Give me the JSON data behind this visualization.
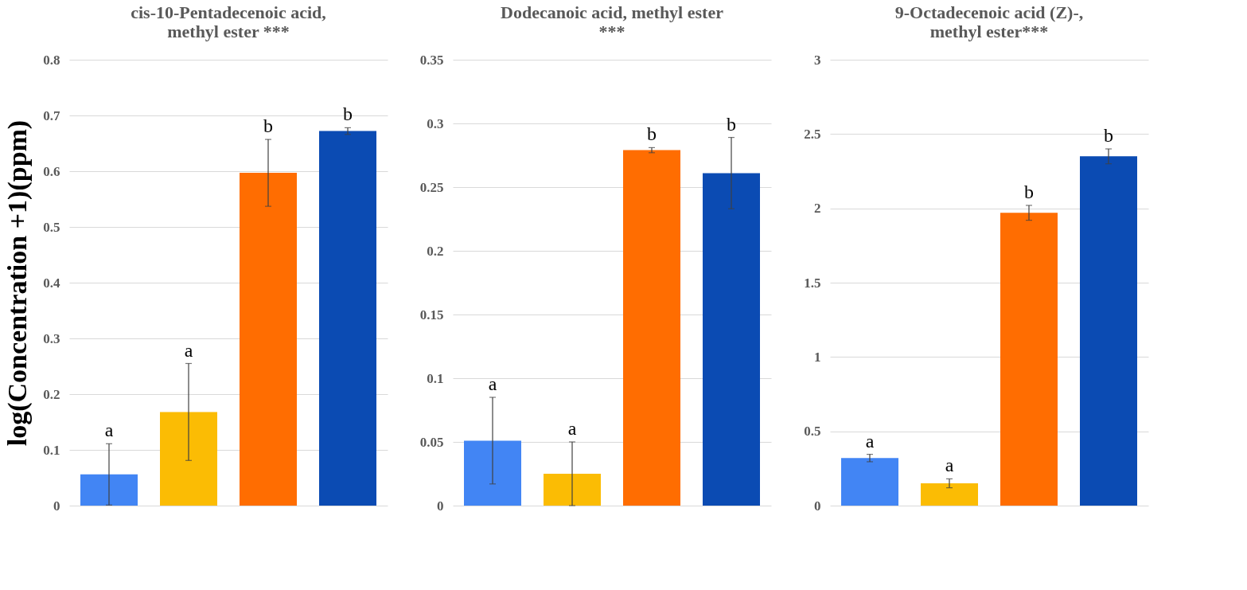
{
  "chart_data": [
    {
      "type": "bar",
      "title": "cis-10-Pentadecenoic acid, methyl ester ***",
      "ylabel": "log(Concentration +1)(ppm)",
      "categories": [
        null,
        null,
        null,
        null
      ],
      "values": [
        0.056,
        0.168,
        0.597,
        0.672
      ],
      "errors": [
        0.055,
        0.087,
        0.06,
        0.006
      ],
      "colors": [
        "#4285f4",
        "#fbbc04",
        "#ff6d01",
        "#0b4bb3"
      ],
      "value_labels": [
        "a",
        "a",
        "b",
        "b"
      ],
      "ylim": [
        0,
        0.8
      ],
      "yticks": [
        0,
        0.1,
        0.2,
        0.3,
        0.4,
        0.5,
        0.6,
        0.7,
        0.8
      ],
      "grid": "y",
      "tick_labels": "y"
    },
    {
      "type": "bar",
      "title": "Dodecanoic acid, methyl ester ***",
      "categories": [
        null,
        null,
        null,
        null
      ],
      "values": [
        0.051,
        0.025,
        0.279,
        0.261
      ],
      "errors": [
        0.034,
        0.025,
        0.002,
        0.028
      ],
      "colors": [
        "#4285f4",
        "#fbbc04",
        "#ff6d01",
        "#0b4bb3"
      ],
      "value_labels": [
        "a",
        "a",
        "b",
        "b"
      ],
      "ylim": [
        0,
        0.35
      ],
      "yticks": [
        0,
        0.05,
        0.1,
        0.15,
        0.2,
        0.25,
        0.3,
        0.35
      ],
      "grid": "y",
      "tick_labels": "y"
    },
    {
      "type": "bar",
      "title": "9-Octadecenoic acid (Z)-, methyl ester***",
      "categories": [
        null,
        null,
        null,
        null
      ],
      "values": [
        0.32,
        0.15,
        1.97,
        2.35
      ],
      "errors": [
        0.025,
        0.03,
        0.05,
        0.05
      ],
      "colors": [
        "#4285f4",
        "#fbbc04",
        "#ff6d01",
        "#0b4bb3"
      ],
      "value_labels": [
        "a",
        "a",
        "b",
        "b"
      ],
      "ylim": [
        0,
        3
      ],
      "yticks": [
        0,
        0.5,
        1,
        1.5,
        2,
        2.5,
        3
      ],
      "grid": "y",
      "tick_labels": "y"
    }
  ]
}
